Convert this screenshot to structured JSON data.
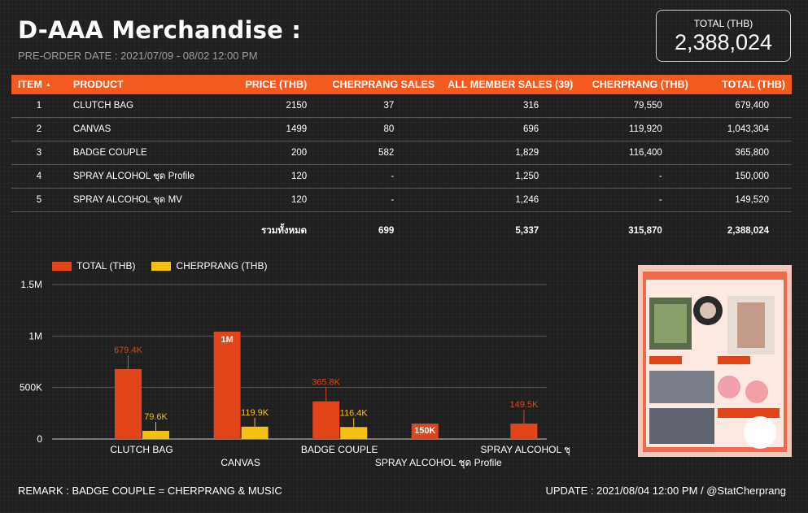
{
  "header": {
    "title": "D-AAA Merchandise :",
    "subtitle": "PRE-ORDER DATE : 2021/07/09 - 08/02 12:00 PM"
  },
  "total_box": {
    "label": "TOTAL (THB)",
    "value": "2,388,024"
  },
  "table": {
    "columns": [
      "ITEM",
      "PRODUCT",
      "PRICE (THB)",
      "CHERPRANG SALES",
      "ALL MEMBER SALES (39)",
      "CHERPRANG (THB)",
      "TOTAL (THB)"
    ],
    "rows": [
      [
        "1",
        "CLUTCH BAG",
        "2150",
        "37",
        "316",
        "79,550",
        "679,400"
      ],
      [
        "2",
        "CANVAS",
        "1499",
        "80",
        "696",
        "119,920",
        "1,043,304"
      ],
      [
        "3",
        "BADGE COUPLE",
        "200",
        "582",
        "1,829",
        "116,400",
        "365,800"
      ],
      [
        "4",
        "SPRAY ALCOHOL ชุด Profile",
        "120",
        "-",
        "1,250",
        "-",
        "150,000"
      ],
      [
        "5",
        "SPRAY ALCOHOL ชุด MV",
        "120",
        "-",
        "1,246",
        "-",
        "149,520"
      ]
    ],
    "totals": {
      "label": "รวมทั้งหมด",
      "cherprang_sales": "699",
      "all_member_sales": "5,337",
      "cherprang_thb": "315,870",
      "total_thb": "2,388,024"
    }
  },
  "chart_data": {
    "type": "bar",
    "categories": [
      "CLUTCH BAG",
      "CANVAS",
      "BADGE COUPLE",
      "SPRAY ALCOHOL ชุด Profile",
      "SPRAY ALCOHOL ชุด MV"
    ],
    "series": [
      {
        "name": "TOTAL (THB)",
        "values": [
          679400,
          1043304,
          365800,
          150000,
          149520
        ],
        "labels": [
          "679.4K",
          "1M",
          "365.8K",
          "150K",
          "149.5K"
        ],
        "color": "#e04418"
      },
      {
        "name": "CHERPRANG (THB)",
        "values": [
          79550,
          119920,
          116400,
          null,
          null
        ],
        "labels": [
          "79.6K",
          "119.9K",
          "116.4K",
          "",
          ""
        ],
        "color": "#f5c012"
      }
    ],
    "yticks": [
      "0",
      "500K",
      "1M",
      "1.5M"
    ],
    "ylim": [
      0,
      1500000
    ],
    "grid": true,
    "legend": "top-left"
  },
  "footer": {
    "remark": "REMARK : BADGE COUPLE = CHERPRANG & MUSIC",
    "update": "UPDATE : 2021/08/04 12:00 PM / @StatCherprang"
  }
}
